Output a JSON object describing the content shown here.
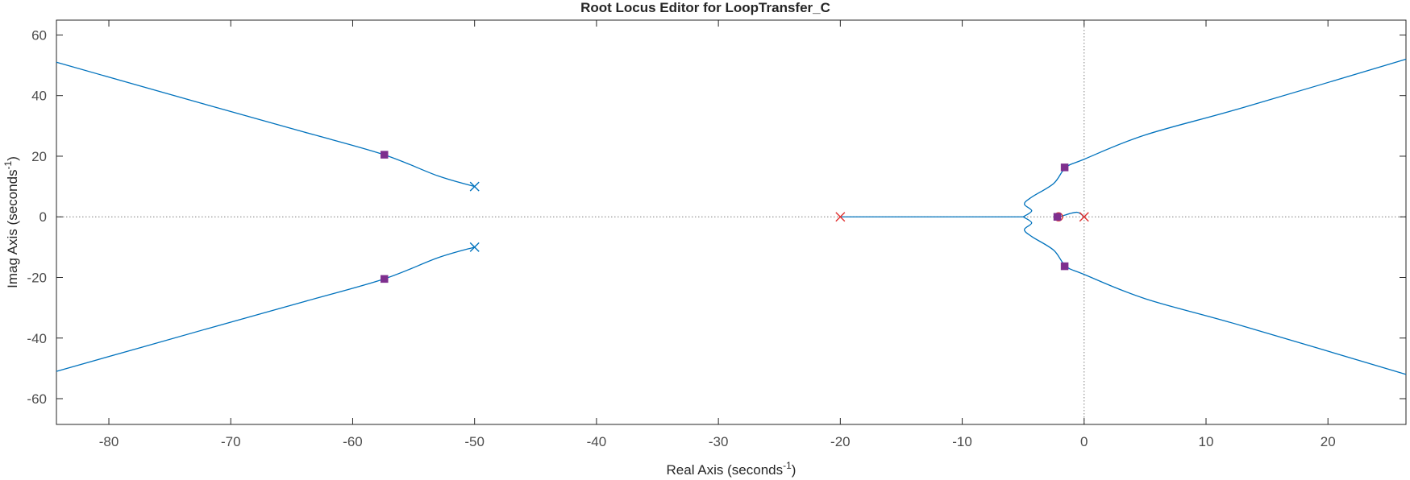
{
  "chart_data": {
    "type": "scatter",
    "title": "Root Locus Editor for LoopTransfer_C",
    "xlabel": {
      "text": "Real Axis (seconds",
      "sup": "-1",
      "close": ")"
    },
    "ylabel": {
      "text": "Imag Axis (seconds",
      "sup": "-1",
      "close": ")"
    },
    "xlim": [
      -84.3,
      26.4
    ],
    "ylim": [
      -68.5,
      64.9
    ],
    "xticks": [
      -80,
      -70,
      -60,
      -50,
      -40,
      -30,
      -20,
      -10,
      0,
      10,
      20
    ],
    "yticks": [
      -60,
      -40,
      -20,
      0,
      20,
      40,
      60
    ],
    "grid": false,
    "colors": {
      "locus": "#0072BD",
      "pole": "#D95319",
      "open_loop_pole": "#E03030",
      "closed_loop_pole": "#7E2F8E",
      "axis": "#262626",
      "reference_line": "#7f7f7f"
    },
    "branches": [
      {
        "points": [
          [
            -50,
            10
          ],
          [
            -53,
            13.5
          ],
          [
            -57.5,
            20.6
          ],
          [
            -64,
            28
          ],
          [
            -72,
            37
          ],
          [
            -84.3,
            51
          ]
        ]
      },
      {
        "points": [
          [
            -50,
            -10
          ],
          [
            -53,
            -13.5
          ],
          [
            -57.5,
            -20.6
          ],
          [
            -64,
            -28
          ],
          [
            -72,
            -37
          ],
          [
            -84.3,
            -51
          ]
        ]
      },
      {
        "points": [
          [
            -20,
            0
          ],
          [
            -8,
            0
          ],
          [
            -5,
            0
          ]
        ]
      },
      {
        "points": [
          [
            -5,
            0
          ],
          [
            -4.3,
            2
          ],
          [
            -4.9,
            4.2
          ],
          [
            -4.3,
            6.5
          ],
          [
            -2.5,
            11
          ],
          [
            -1.5,
            16.3
          ],
          [
            0,
            19
          ],
          [
            5,
            27
          ],
          [
            13,
            36
          ],
          [
            26.4,
            52
          ]
        ]
      },
      {
        "points": [
          [
            -5,
            0
          ],
          [
            -4.3,
            -2
          ],
          [
            -4.9,
            -4.2
          ],
          [
            -4.3,
            -6.5
          ],
          [
            -2.5,
            -11
          ],
          [
            -1.5,
            -16.3
          ],
          [
            0,
            -19
          ],
          [
            5,
            -27
          ],
          [
            13,
            -36
          ],
          [
            26.4,
            -52
          ]
        ]
      },
      {
        "points": [
          [
            0,
            0
          ],
          [
            -0.6,
            1.5
          ],
          [
            -1.8,
            0.3
          ],
          [
            -2,
            0
          ]
        ]
      }
    ],
    "open_loop_poles": [
      {
        "x": -50,
        "y": 10,
        "color": "#0072BD"
      },
      {
        "x": -50,
        "y": -10,
        "color": "#0072BD"
      },
      {
        "x": -20,
        "y": 0,
        "color": "#E03030"
      },
      {
        "x": 0,
        "y": 0,
        "color": "#E03030"
      }
    ],
    "open_loop_zeros": [
      {
        "x": -2.1,
        "y": 0
      }
    ],
    "closed_loop_poles": [
      {
        "x": -57.4,
        "y": 20.5
      },
      {
        "x": -57.4,
        "y": -20.5
      },
      {
        "x": -1.6,
        "y": 16.3
      },
      {
        "x": -1.6,
        "y": -16.3
      },
      {
        "x": -2.2,
        "y": 0
      }
    ]
  }
}
